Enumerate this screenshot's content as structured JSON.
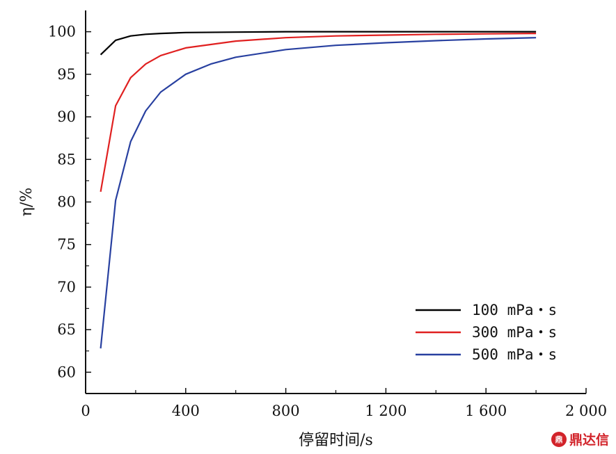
{
  "chart_data": {
    "type": "line",
    "xlabel": "停留时间/s",
    "ylabel": "η/%",
    "xlim": [
      0,
      2000
    ],
    "ylim": [
      57.5,
      102.5
    ],
    "xticks": [
      0,
      400,
      800,
      1200,
      1600,
      2000
    ],
    "xtick_labels": [
      "0",
      "400",
      "800",
      "1 200",
      "1 600",
      "2 000"
    ],
    "yticks": [
      60,
      65,
      70,
      75,
      80,
      85,
      90,
      95,
      100
    ],
    "ytick_labels": [
      "60",
      "65",
      "70",
      "75",
      "80",
      "85",
      "90",
      "95",
      "100"
    ],
    "grid": false,
    "legend_position": "bottom-right",
    "series": [
      {
        "name": "100 mPa・s",
        "color": "#000000",
        "x": [
          60,
          120,
          180,
          240,
          300,
          400,
          600,
          800,
          1200,
          1600,
          1800
        ],
        "y": [
          97.3,
          99.0,
          99.5,
          99.7,
          99.8,
          99.9,
          99.95,
          100.0,
          100.0,
          100.0,
          100.0
        ]
      },
      {
        "name": "300 mPa・s",
        "color": "#e02020",
        "x": [
          60,
          120,
          180,
          240,
          300,
          400,
          600,
          800,
          1000,
          1200,
          1400,
          1600,
          1800
        ],
        "y": [
          81.2,
          91.3,
          94.6,
          96.2,
          97.2,
          98.1,
          98.9,
          99.3,
          99.5,
          99.6,
          99.7,
          99.75,
          99.8
        ]
      },
      {
        "name": "500 mPa・s",
        "color": "#2840a0",
        "x": [
          60,
          120,
          180,
          240,
          300,
          400,
          500,
          600,
          800,
          1000,
          1200,
          1400,
          1600,
          1800
        ],
        "y": [
          62.8,
          80.2,
          87.1,
          90.7,
          92.9,
          95.0,
          96.2,
          97.0,
          97.9,
          98.4,
          98.7,
          98.95,
          99.15,
          99.3
        ]
      }
    ]
  },
  "watermark": {
    "logo_text": "鼎",
    "text": "鼎达信"
  }
}
